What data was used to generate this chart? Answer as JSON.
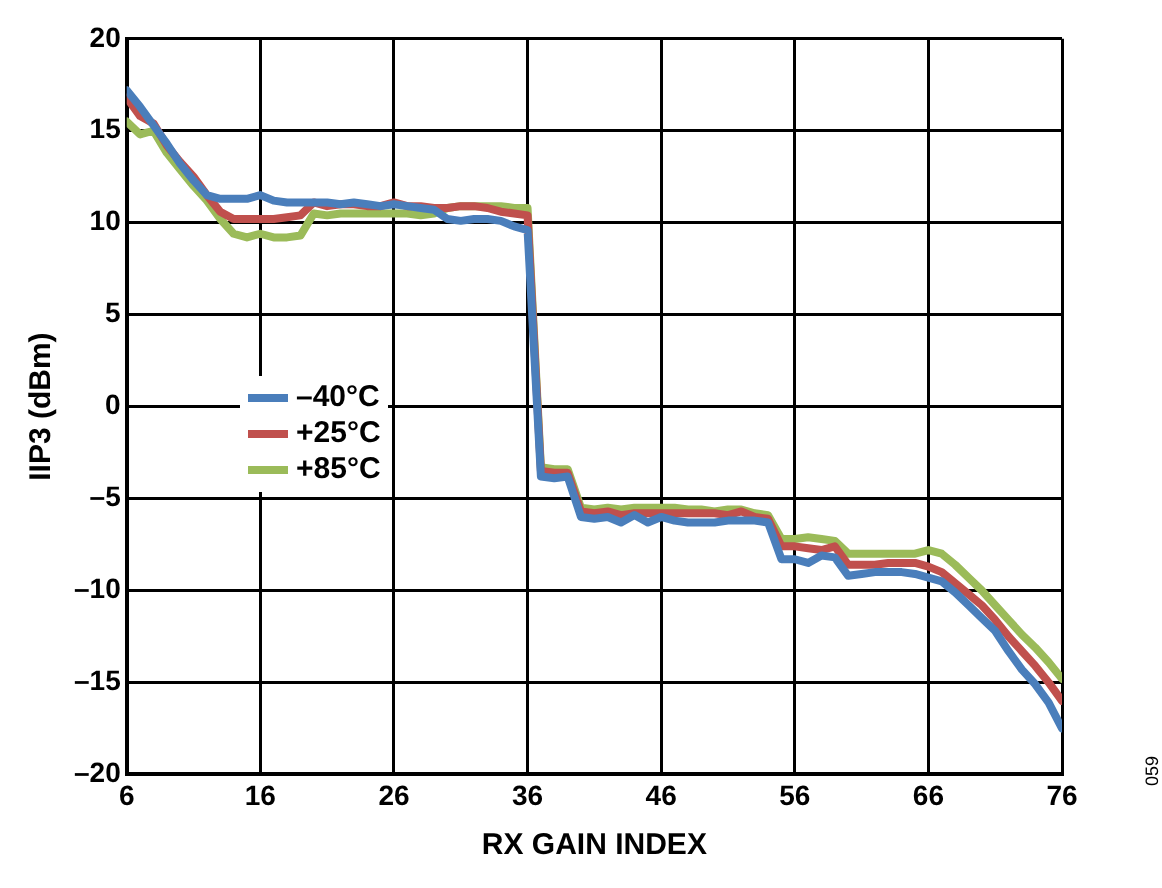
{
  "chart_data": {
    "type": "line",
    "xlabel": "RX GAIN INDEX",
    "ylabel": "IIP3 (dBm)",
    "x": [
      6,
      7,
      8,
      9,
      10,
      11,
      12,
      13,
      14,
      15,
      16,
      17,
      18,
      19,
      20,
      21,
      22,
      23,
      24,
      25,
      26,
      27,
      28,
      29,
      30,
      31,
      32,
      33,
      34,
      35,
      36,
      37,
      38,
      39,
      40,
      41,
      42,
      43,
      44,
      45,
      46,
      47,
      48,
      49,
      50,
      51,
      52,
      53,
      54,
      55,
      56,
      57,
      58,
      59,
      60,
      61,
      62,
      63,
      64,
      65,
      66,
      67,
      68,
      69,
      70,
      71,
      72,
      73,
      74,
      75,
      76
    ],
    "series": [
      {
        "name": "–40°C",
        "color": "#4a7ebb",
        "values": [
          17.2,
          16.3,
          15.3,
          14.3,
          13.2,
          12.3,
          11.5,
          11.3,
          11.3,
          11.3,
          11.5,
          11.2,
          11.1,
          11.1,
          11.1,
          11.1,
          11.0,
          11.1,
          11.0,
          10.9,
          11.0,
          10.9,
          10.8,
          10.7,
          10.2,
          10.1,
          10.2,
          10.2,
          10.1,
          9.8,
          9.6,
          -3.8,
          -3.9,
          -3.8,
          -6.0,
          -6.1,
          -6.0,
          -6.3,
          -5.9,
          -6.3,
          -6.0,
          -6.2,
          -6.3,
          -6.3,
          -6.3,
          -6.2,
          -6.2,
          -6.2,
          -6.3,
          -8.3,
          -8.3,
          -8.5,
          -8.1,
          -8.2,
          -9.2,
          -9.1,
          -9.0,
          -9.0,
          -9.0,
          -9.1,
          -9.3,
          -9.5,
          -10.1,
          -10.8,
          -11.5,
          -12.2,
          -13.3,
          -14.3,
          -15.1,
          -16.1,
          -17.5
        ]
      },
      {
        "name": "+25°C",
        "color": "#c0504d",
        "values": [
          16.8,
          15.8,
          15.4,
          14.2,
          13.3,
          12.5,
          11.5,
          10.6,
          10.2,
          10.2,
          10.2,
          10.2,
          10.3,
          10.4,
          11.1,
          10.9,
          11.0,
          11.0,
          10.9,
          10.9,
          11.1,
          10.9,
          10.9,
          10.8,
          10.8,
          10.9,
          10.9,
          10.8,
          10.6,
          10.5,
          10.4,
          -3.5,
          -3.6,
          -3.6,
          -5.7,
          -5.8,
          -5.7,
          -5.9,
          -5.8,
          -5.8,
          -5.8,
          -5.8,
          -5.8,
          -5.8,
          -5.8,
          -5.9,
          -5.7,
          -6.0,
          -6.1,
          -7.6,
          -7.6,
          -7.7,
          -7.8,
          -7.6,
          -8.6,
          -8.6,
          -8.6,
          -8.5,
          -8.5,
          -8.5,
          -8.7,
          -9.0,
          -9.6,
          -10.2,
          -10.8,
          -11.6,
          -12.5,
          -13.3,
          -14.1,
          -15.0,
          -16.0
        ]
      },
      {
        "name": "+85°C",
        "color": "#9bbb59",
        "values": [
          15.5,
          14.8,
          15.0,
          13.8,
          12.9,
          12.0,
          11.2,
          10.2,
          9.4,
          9.2,
          9.4,
          9.2,
          9.2,
          9.3,
          10.5,
          10.4,
          10.5,
          10.5,
          10.5,
          10.5,
          10.5,
          10.5,
          10.4,
          10.5,
          10.8,
          10.9,
          10.9,
          10.9,
          10.9,
          10.8,
          10.8,
          -3.3,
          -3.4,
          -3.4,
          -5.5,
          -5.6,
          -5.5,
          -5.6,
          -5.5,
          -5.5,
          -5.5,
          -5.5,
          -5.6,
          -5.6,
          -5.7,
          -5.6,
          -5.6,
          -5.8,
          -5.9,
          -7.2,
          -7.2,
          -7.1,
          -7.2,
          -7.3,
          -8.0,
          -8.0,
          -8.0,
          -8.0,
          -8.0,
          -8.0,
          -7.8,
          -8.0,
          -8.6,
          -9.3,
          -10.0,
          -10.8,
          -11.6,
          -12.4,
          -13.1,
          -13.9,
          -14.8
        ]
      }
    ],
    "xlim": [
      6,
      76
    ],
    "xticks": [
      6,
      16,
      26,
      36,
      46,
      56,
      66,
      76
    ],
    "ylim": [
      -20,
      20
    ],
    "yticks": [
      {
        "value": -20,
        "label": "–20"
      },
      {
        "value": -15,
        "label": "–15"
      },
      {
        "value": -10,
        "label": "–10"
      },
      {
        "value": -5,
        "label": "–5"
      },
      0,
      5,
      10,
      15,
      20
    ],
    "grid": true,
    "legend": "left",
    "marker": "none",
    "line_style": "solid",
    "annotations": [
      "059"
    ]
  }
}
